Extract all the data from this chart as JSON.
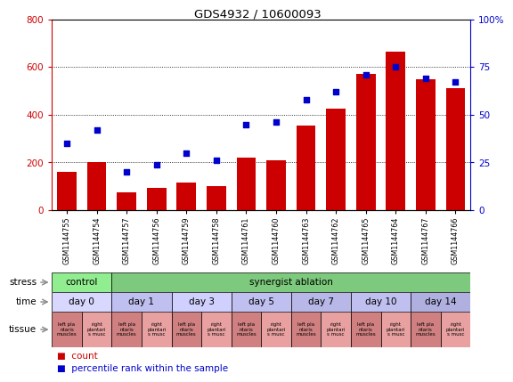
{
  "title": "GDS4932 / 10600093",
  "samples": [
    "GSM1144755",
    "GSM1144754",
    "GSM1144757",
    "GSM1144756",
    "GSM1144759",
    "GSM1144758",
    "GSM1144761",
    "GSM1144760",
    "GSM1144763",
    "GSM1144762",
    "GSM1144765",
    "GSM1144764",
    "GSM1144767",
    "GSM1144766"
  ],
  "counts": [
    160,
    200,
    75,
    95,
    115,
    100,
    220,
    210,
    355,
    425,
    570,
    665,
    550,
    510
  ],
  "percentiles": [
    35,
    42,
    20,
    24,
    30,
    26,
    45,
    46,
    58,
    62,
    71,
    75,
    69,
    67
  ],
  "bar_color": "#cc0000",
  "dot_color": "#0000cc",
  "ylim_left": [
    0,
    800
  ],
  "ylim_right": [
    0,
    100
  ],
  "yticks_left": [
    0,
    200,
    400,
    600,
    800
  ],
  "yticks_right": [
    0,
    25,
    50,
    75,
    100
  ],
  "ytick_labels_right": [
    "0",
    "25",
    "50",
    "75",
    "100%"
  ],
  "stress_groups": [
    {
      "label": "control",
      "start": 0,
      "end": 2,
      "color": "#90ee90"
    },
    {
      "label": "synergist ablation",
      "start": 2,
      "end": 14,
      "color": "#7dc97d"
    }
  ],
  "time_groups": [
    {
      "label": "day 0",
      "start": 0,
      "end": 2,
      "color": "#d8d8ff"
    },
    {
      "label": "day 1",
      "start": 2,
      "end": 4,
      "color": "#c0c0f0"
    },
    {
      "label": "day 3",
      "start": 4,
      "end": 6,
      "color": "#d0d0ff"
    },
    {
      "label": "day 5",
      "start": 6,
      "end": 8,
      "color": "#c0c0f0"
    },
    {
      "label": "day 7",
      "start": 8,
      "end": 10,
      "color": "#b8b8e8"
    },
    {
      "label": "day 10",
      "start": 10,
      "end": 12,
      "color": "#c0c0f0"
    },
    {
      "label": "day 14",
      "start": 12,
      "end": 14,
      "color": "#b0b0e0"
    }
  ],
  "tissue_left_color": "#d08080",
  "tissue_right_color": "#e8a0a0",
  "tissue_left_label": "left pla\nntaris\nmuscles",
  "tissue_right_label": "right\nplantari\ns musc",
  "bg_color": "#ffffff",
  "grid_color": "#000000",
  "legend_count_color": "#cc0000",
  "legend_pct_color": "#0000cc"
}
